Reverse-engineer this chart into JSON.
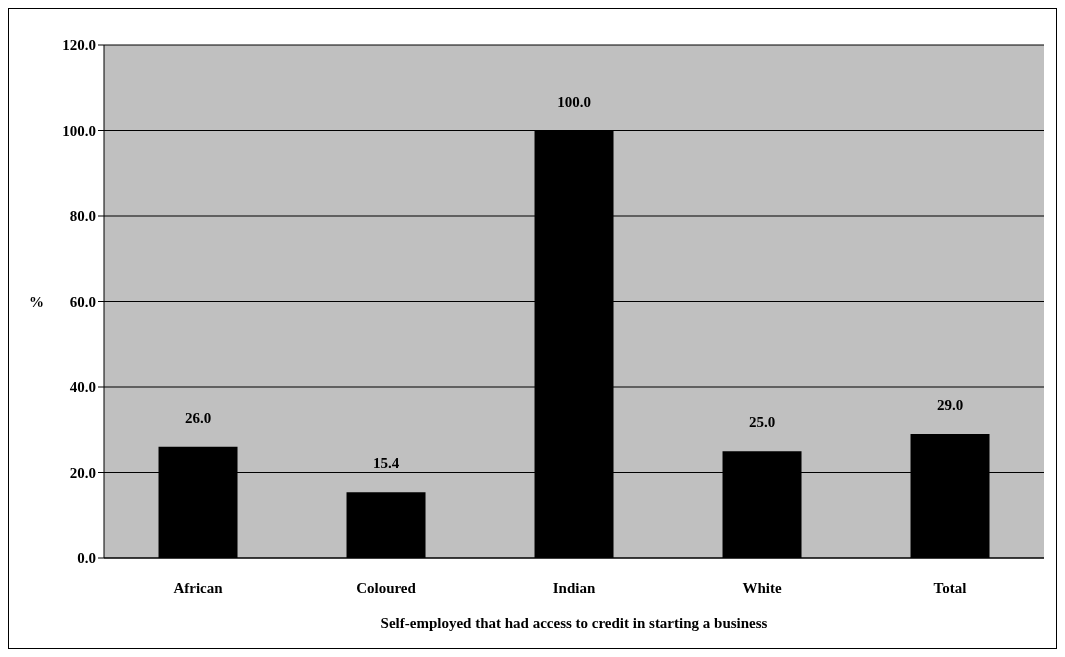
{
  "chart_data": {
    "type": "bar",
    "xlabel": "Self-employed that had access to credit in starting a business",
    "ylabel": "%",
    "categories": [
      "African",
      "Coloured",
      "Indian",
      "White",
      "Total"
    ],
    "values": [
      26.0,
      15.4,
      100.0,
      25.0,
      29.0
    ],
    "value_labels": [
      "26.0",
      "15.4",
      "100.0",
      "25.0",
      "29.0"
    ],
    "color": "#000000",
    "ylim": [
      0,
      120
    ],
    "yticks": [
      {
        "value": 0,
        "label": "0.0"
      },
      {
        "value": 20,
        "label": "20.0"
      },
      {
        "value": 40,
        "label": "40.0"
      },
      {
        "value": 60,
        "label": "60.0"
      },
      {
        "value": 80,
        "label": "80.0"
      },
      {
        "value": 100,
        "label": "100.0"
      },
      {
        "value": 120,
        "label": "120.0"
      }
    ],
    "grid": "y",
    "legend": false
  }
}
